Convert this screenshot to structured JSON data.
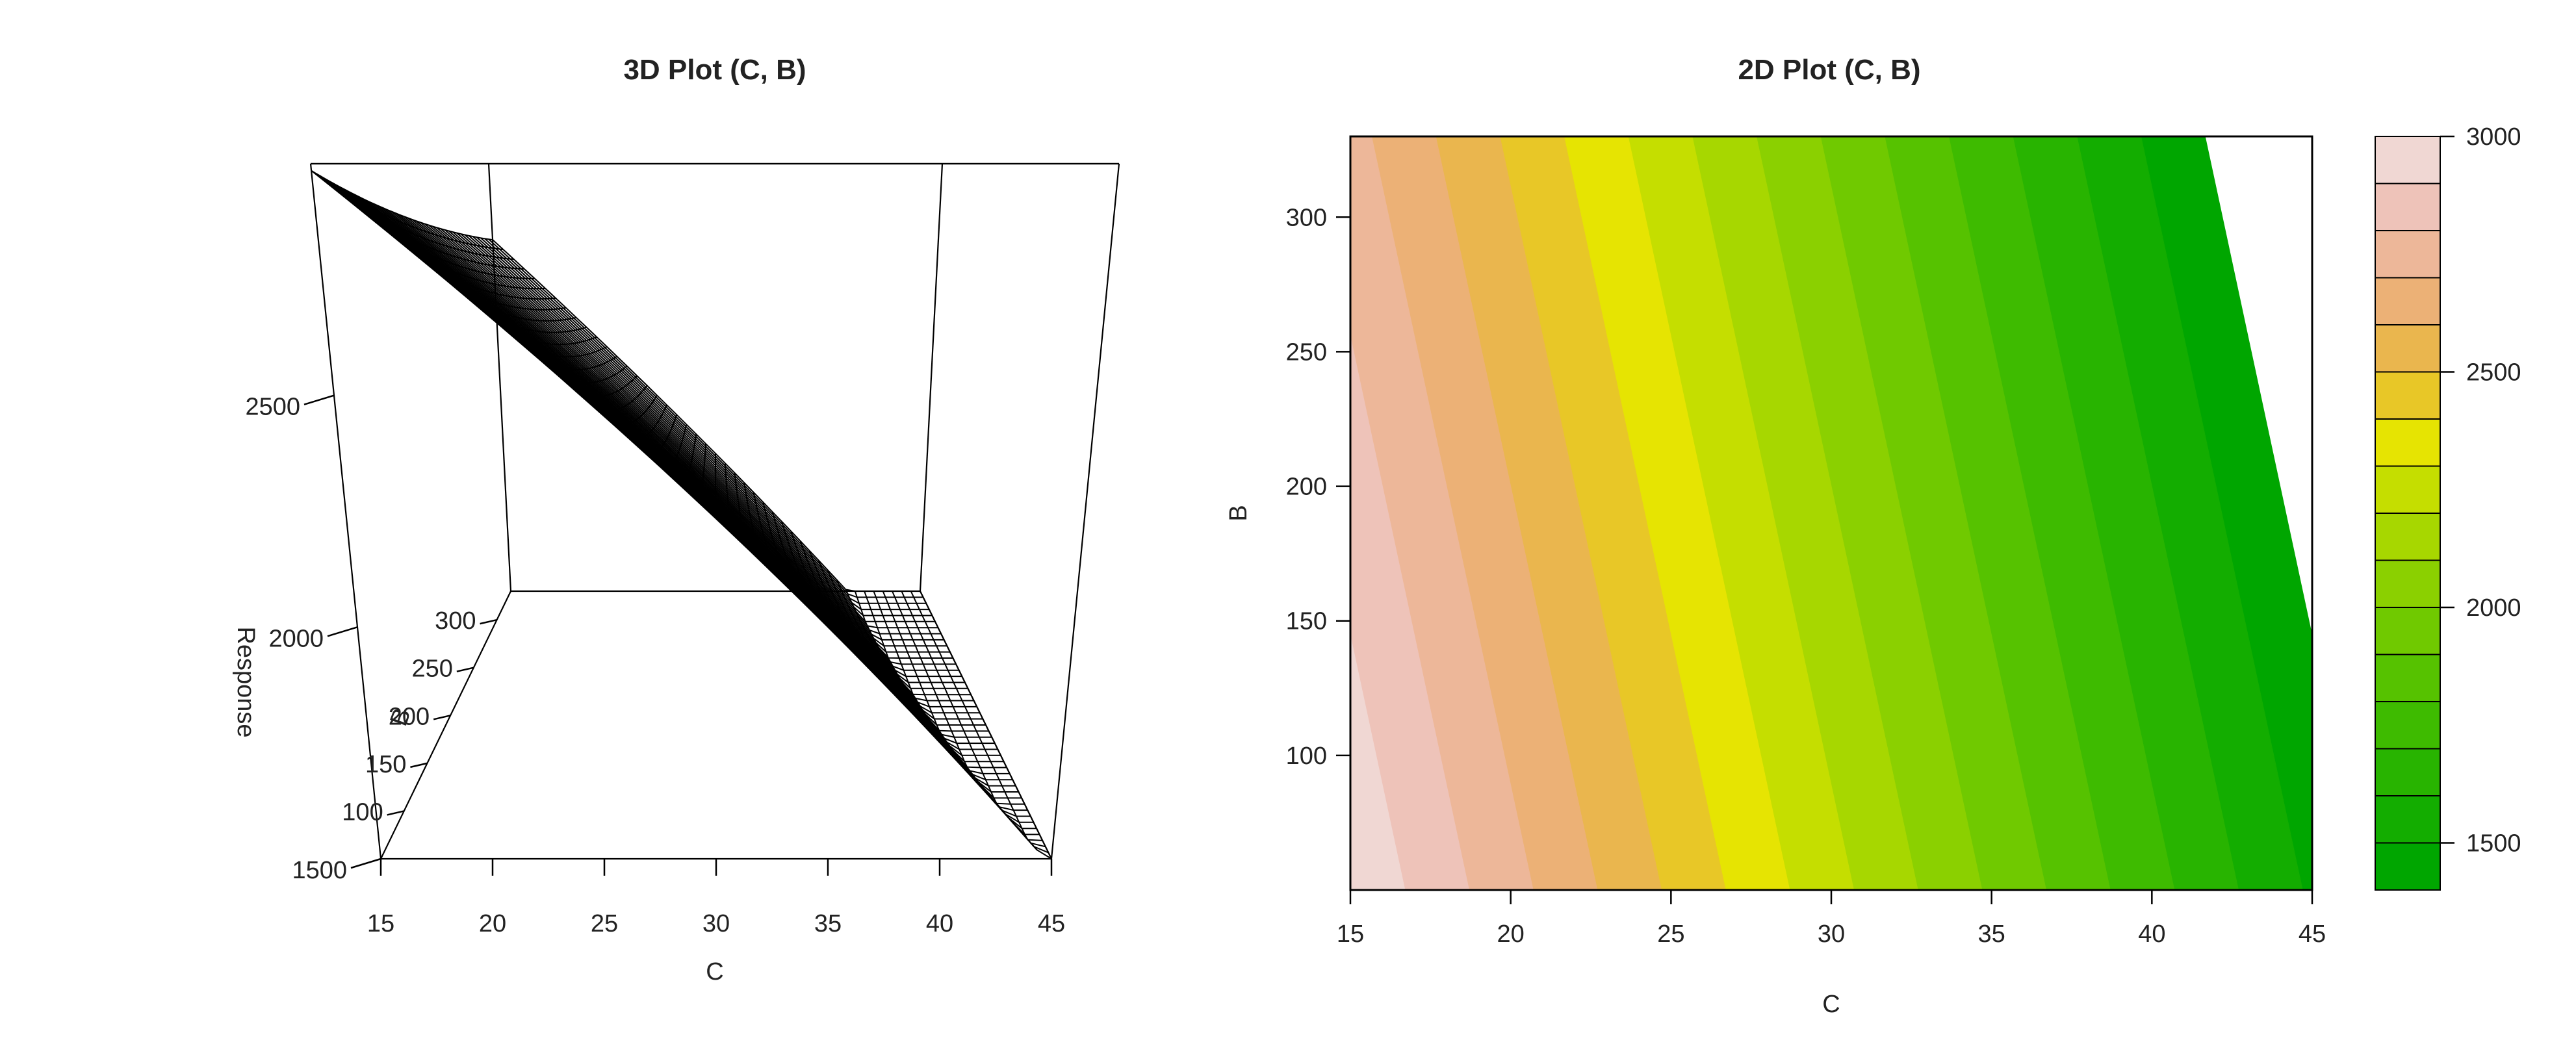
{
  "chart_data": [
    {
      "type": "surface3d",
      "title": "3D Plot (C, B)",
      "xlabel": "C",
      "ylabel": "B",
      "zlabel": "Response",
      "x_ticks": [
        "15",
        "20",
        "25",
        "30",
        "35",
        "40",
        "45"
      ],
      "y_ticks": [
        "100",
        "150",
        "200",
        "250",
        "300"
      ],
      "z_ticks": [
        "1500",
        "2000",
        "2500"
      ],
      "xlim": [
        15,
        45
      ],
      "ylim": [
        50,
        330
      ],
      "zlim": [
        1500,
        3000
      ],
      "surface_color": "#000000"
    },
    {
      "type": "heatmap",
      "title": "2D Plot (C, B)",
      "xlabel": "C",
      "ylabel": "B",
      "x_ticks": [
        "15",
        "20",
        "25",
        "30",
        "35",
        "40",
        "45"
      ],
      "y_ticks": [
        "100",
        "150",
        "200",
        "250",
        "300"
      ],
      "xlim": [
        15,
        45
      ],
      "ylim": [
        50,
        330
      ],
      "levels": [
        1400,
        1500,
        1600,
        1700,
        1800,
        1900,
        2000,
        2100,
        2200,
        2300,
        2400,
        2500,
        2600,
        2700,
        2800,
        2900,
        3000
      ],
      "colors": [
        "#00a600",
        "#13ad00",
        "#28b400",
        "#3ebb00",
        "#56c200",
        "#70c900",
        "#8bd000",
        "#a7d700",
        "#c5de00",
        "#e6e402",
        "#e8c727",
        "#eab64e",
        "#ecb176",
        "#edb799",
        "#eec3b9",
        "#f0d7d3",
        "#f2f2f2"
      ],
      "colorbar_ticks": [
        "1500",
        "2000",
        "2500",
        "3000"
      ],
      "surface": {
        "intercept": 3780,
        "slope_C": -50,
        "slope_B": -0.9
      }
    }
  ]
}
